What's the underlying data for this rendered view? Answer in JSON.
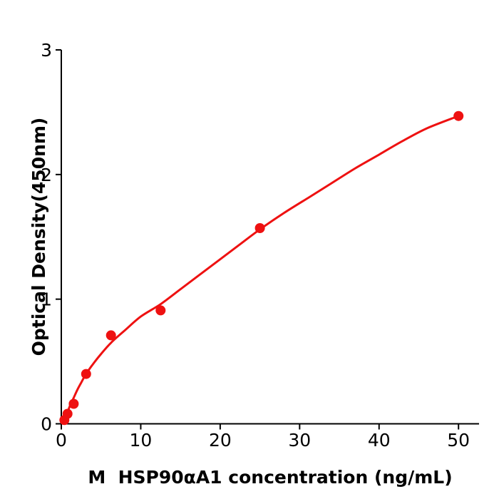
{
  "chart_data": {
    "type": "scatter",
    "title": "",
    "xlabel": "M  HSP90αA1 concentration (ng/mL)",
    "ylabel": "Optical Density(450nm)",
    "xlim": [
      0,
      52.6
    ],
    "ylim": [
      0,
      3
    ],
    "x_ticks": [
      0,
      10,
      20,
      30,
      40,
      50
    ],
    "y_ticks": [
      0,
      1,
      2,
      3
    ],
    "grid": false,
    "legend": "none",
    "colors": {
      "points": "#ee1111",
      "curve": "#ee1111",
      "axis": "#000000",
      "background": "#ffffff"
    },
    "series": [
      {
        "name": "standard_points",
        "type": "scatter",
        "x": [
          0.39,
          0.78,
          1.56,
          3.125,
          6.25,
          12.5,
          25,
          50
        ],
        "y": [
          0.03,
          0.08,
          0.16,
          0.4,
          0.71,
          0.91,
          1.57,
          2.47
        ]
      },
      {
        "name": "fitted_curve",
        "type": "line",
        "x": [
          0.22,
          0.6,
          1.0,
          1.5,
          2.0,
          2.5,
          3.125,
          4,
          5,
          6.25,
          8,
          10,
          12.5,
          15,
          17.5,
          20,
          22.5,
          25,
          28,
          31,
          34,
          37,
          40,
          43,
          46,
          50
        ],
        "y": [
          0.0,
          0.06,
          0.13,
          0.2,
          0.27,
          0.33,
          0.4,
          0.48,
          0.56,
          0.65,
          0.75,
          0.86,
          0.96,
          1.08,
          1.2,
          1.32,
          1.44,
          1.56,
          1.69,
          1.81,
          1.93,
          2.05,
          2.16,
          2.27,
          2.37,
          2.47
        ]
      }
    ]
  }
}
